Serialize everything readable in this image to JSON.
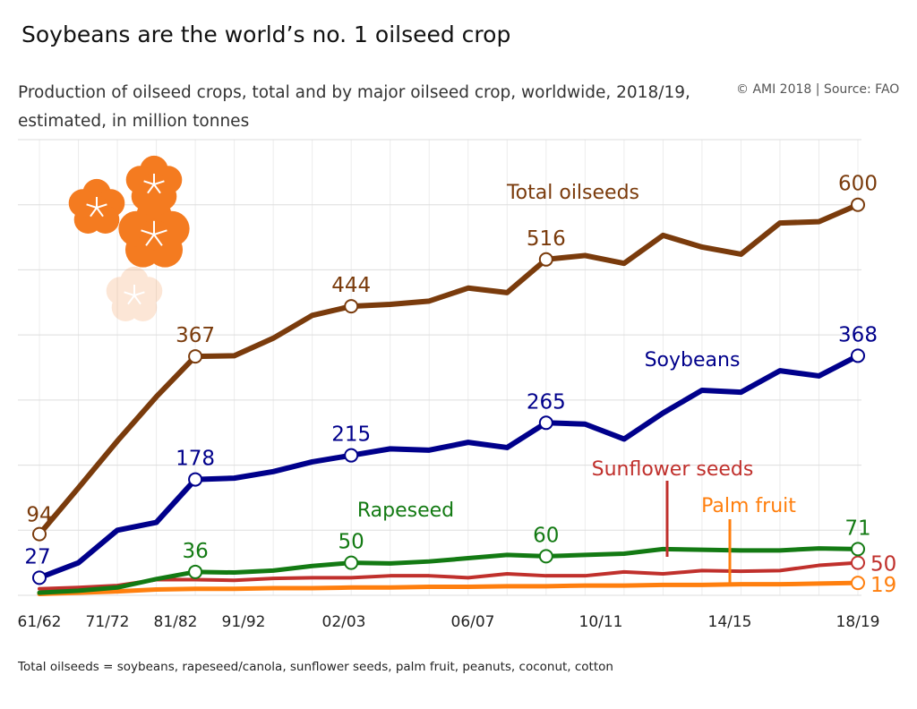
{
  "title": "Soybeans are the world’s no. 1 oilseed crop",
  "subtitle": "Production of oilseed crops, total and by major oilseed crop, worldwide, 2018/19, estimated, in million tonnes",
  "credit": "© AMI 2018 | Source: FAO",
  "footnote": "Total oilseeds = soybeans, rapeseed/canola, sunflower seeds, palm fruit, peanuts, coconut, cotton",
  "colors": {
    "total": "#7a3b0c",
    "soybeans": "#00008b",
    "rapeseed": "#137a13",
    "sunflower": "#c0302c",
    "palm": "#ff7f0e",
    "grid": "#dddddd",
    "flower": "#f47b20"
  },
  "chart_data": {
    "type": "line",
    "xlabel": "",
    "ylabel": "",
    "grid": true,
    "ylim": [
      0,
      700
    ],
    "x": [
      1,
      2,
      3,
      4,
      5,
      6,
      7,
      8,
      9,
      10,
      11,
      12,
      13,
      14,
      15,
      16,
      17,
      18,
      19,
      20,
      21,
      22,
      23,
      24,
      25,
      26,
      27,
      28
    ],
    "x_tick_labels": [
      "61/62",
      "71/72",
      "81/82",
      "91/92",
      "02/03",
      "06/07",
      "10/11",
      "14/15",
      "18/19"
    ],
    "x_tick_positions": [
      1,
      3,
      5,
      7,
      9,
      14,
      19,
      24,
      28
    ],
    "series": [
      {
        "name": "Total oilseeds",
        "key": "total",
        "values": [
          94,
          165,
          237,
          305,
          367,
          368,
          395,
          430,
          444,
          447,
          452,
          472,
          465,
          516,
          522,
          510,
          553,
          535,
          524,
          572,
          574,
          600,
          null,
          null,
          null,
          null,
          null,
          null
        ],
        "labels": [
          {
            "i": 0,
            "text": "94"
          },
          {
            "i": 4,
            "text": "367"
          },
          {
            "i": 8,
            "text": "444"
          },
          {
            "i": 13,
            "text": "516"
          },
          {
            "i": 21,
            "text": "600"
          }
        ]
      },
      {
        "name": "Soybeans",
        "key": "soybeans",
        "values": [
          27,
          50,
          100,
          112,
          178,
          180,
          190,
          205,
          215,
          225,
          223,
          235,
          227,
          265,
          263,
          240,
          280,
          315,
          312,
          345,
          337,
          368,
          null,
          null,
          null,
          null,
          null,
          null
        ],
        "labels": [
          {
            "i": 0,
            "text": "27"
          },
          {
            "i": 4,
            "text": "178"
          },
          {
            "i": 8,
            "text": "215"
          },
          {
            "i": 13,
            "text": "265"
          },
          {
            "i": 21,
            "text": "368"
          }
        ]
      },
      {
        "name": "Rapeseed",
        "key": "rapeseed",
        "values": [
          4,
          7,
          12,
          25,
          36,
          35,
          38,
          45,
          50,
          49,
          52,
          57,
          62,
          60,
          62,
          64,
          71,
          70,
          69,
          69,
          72,
          71,
          null,
          null,
          null,
          null,
          null,
          null
        ],
        "labels": [
          {
            "i": 4,
            "text": "36"
          },
          {
            "i": 8,
            "text": "50"
          },
          {
            "i": 13,
            "text": "60"
          },
          {
            "i": 21,
            "text": "71"
          }
        ]
      },
      {
        "name": "Sunflower seeds",
        "key": "sunflower",
        "values": [
          10,
          12,
          15,
          24,
          24,
          23,
          26,
          27,
          27,
          30,
          30,
          27,
          33,
          30,
          30,
          36,
          33,
          38,
          37,
          38,
          46,
          50,
          null,
          null,
          null,
          null,
          null,
          null
        ],
        "labels": [
          {
            "i": 21,
            "text": "50"
          }
        ]
      },
      {
        "name": "Palm fruit",
        "key": "palm",
        "values": [
          2,
          4,
          6,
          9,
          10,
          10,
          11,
          11,
          12,
          12,
          13,
          13,
          14,
          14,
          15,
          15,
          16,
          16,
          17,
          17,
          18,
          19,
          null,
          null,
          null,
          null,
          null,
          null
        ],
        "labels": [
          {
            "i": 21,
            "text": "19"
          }
        ]
      }
    ]
  }
}
